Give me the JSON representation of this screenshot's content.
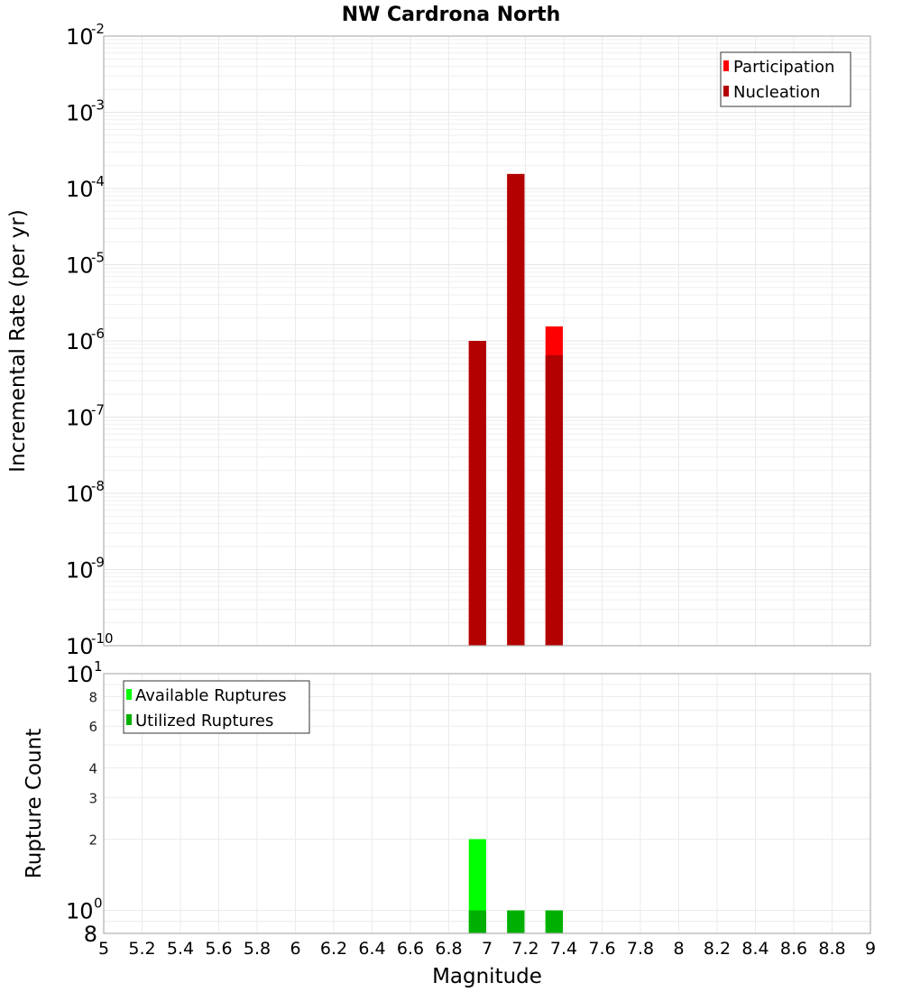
{
  "chart_data": [
    {
      "type": "bar",
      "title": "NW Cardrona North",
      "xlabel": "",
      "ylabel": "Incremental Rate (per yr)",
      "yscale": "log",
      "ylim": [
        1e-10,
        0.01
      ],
      "xlim": [
        5,
        9
      ],
      "grid": true,
      "legend_position": "top-right",
      "bin_width": 0.1,
      "x": [
        6.95,
        7.15,
        7.35
      ],
      "series": [
        {
          "name": "Participation",
          "color": "#ff0000",
          "values": [
            1e-06,
            0.000155,
            1.55e-06
          ]
        },
        {
          "name": "Nucleation",
          "color": "#b30000",
          "values": [
            1e-06,
            0.000155,
            6.5e-07
          ]
        }
      ],
      "ytick_labels": [
        "10^-2",
        "10^-3",
        "10^-4",
        "10^-5",
        "10^-6",
        "10^-7",
        "10^-8",
        "10^-9",
        "10^-10"
      ]
    },
    {
      "type": "bar",
      "title": "",
      "xlabel": "Magnitude",
      "ylabel": "Rupture Count",
      "yscale": "log",
      "ylim": [
        0.8,
        10
      ],
      "xlim": [
        5,
        9
      ],
      "grid": true,
      "legend_position": "top-left",
      "bin_width": 0.1,
      "x": [
        6.95,
        7.15,
        7.35
      ],
      "series": [
        {
          "name": "Available Ruptures",
          "color": "#00ff00",
          "values": [
            2,
            1,
            1
          ]
        },
        {
          "name": "Utilized Ruptures",
          "color": "#00b000",
          "values": [
            1,
            1,
            1
          ]
        }
      ],
      "ytick_labels": [
        "10^1",
        "8",
        "6",
        "4",
        "3",
        "2",
        "10^0",
        "8"
      ],
      "xtick_labels": [
        "5",
        "5.2",
        "5.4",
        "5.6",
        "5.8",
        "6",
        "6.2",
        "6.4",
        "6.6",
        "6.8",
        "7",
        "7.2",
        "7.4",
        "7.6",
        "7.8",
        "8",
        "8.2",
        "8.4",
        "8.6",
        "8.8",
        "9"
      ]
    }
  ],
  "labels": {
    "title": "NW Cardrona North",
    "top_ylabel": "Incremental Rate (per yr)",
    "bottom_ylabel": "Rupture Count",
    "xlabel": "Magnitude",
    "legend_top": [
      "Participation",
      "Nucleation"
    ],
    "legend_bottom": [
      "Available Ruptures",
      "Utilized Ruptures"
    ]
  }
}
